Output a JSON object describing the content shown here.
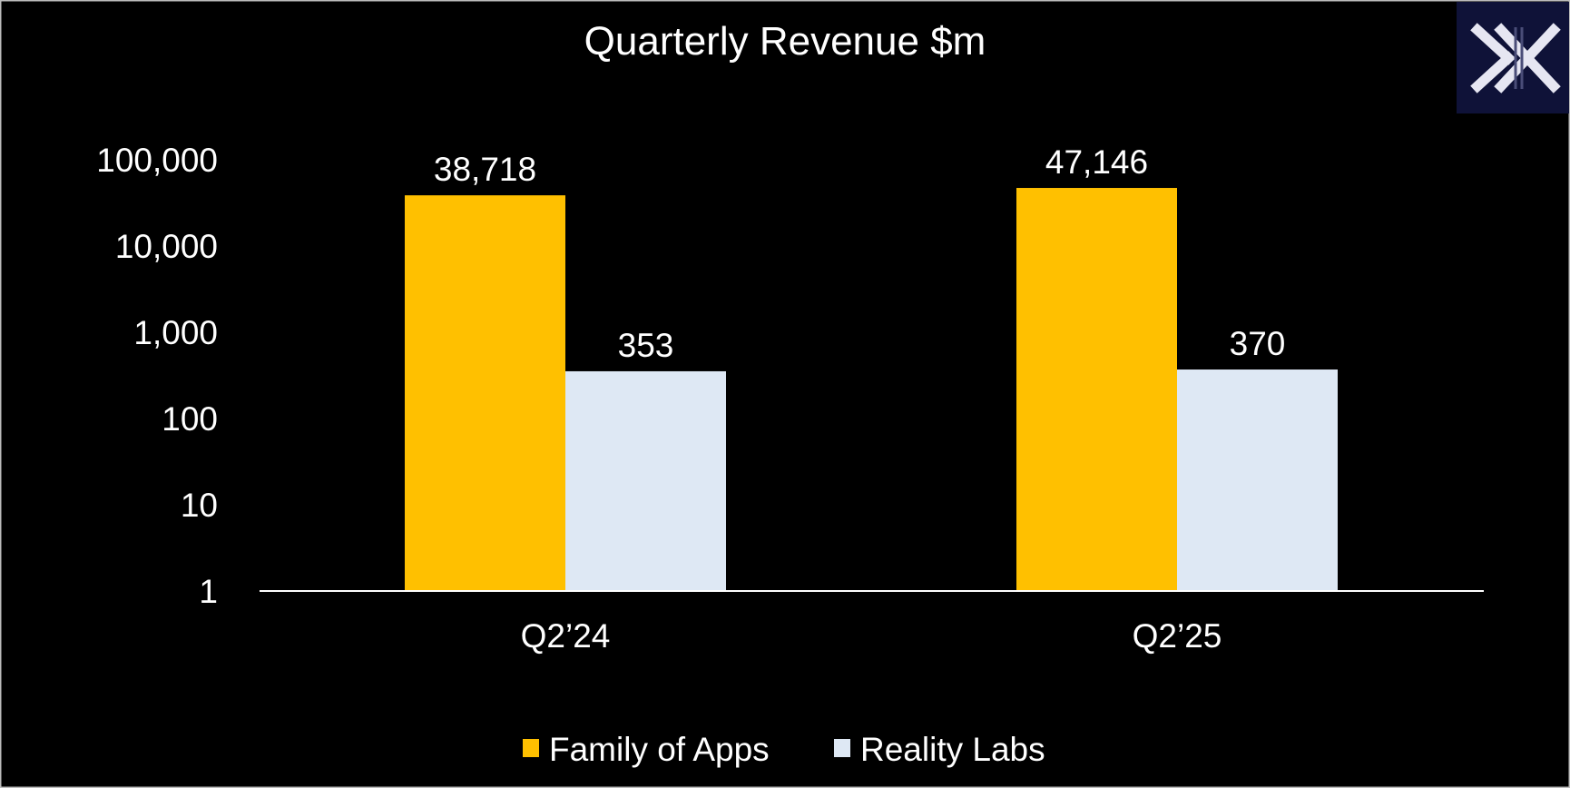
{
  "chart_data": {
    "type": "bar",
    "title": "Quarterly Revenue $m",
    "xlabel": "",
    "ylabel": "",
    "y_scale": "log",
    "ylim": [
      1,
      100000
    ],
    "y_ticks": [
      "1",
      "10",
      "100",
      "1,000",
      "10,000",
      "100,000"
    ],
    "categories": [
      "Q2’24",
      "Q2’25"
    ],
    "series": [
      {
        "name": "Family of Apps",
        "color": "#FFC000",
        "values": [
          38718,
          47146
        ],
        "labels": [
          "38,718",
          "47,146"
        ]
      },
      {
        "name": "Reality Labs",
        "color": "#DEE8F4",
        "values": [
          353,
          370
        ],
        "labels": [
          "353",
          "370"
        ]
      }
    ],
    "grid": false,
    "legend_position": "bottom",
    "background": "#000000"
  },
  "logo": {
    "icon": "x-logo-icon",
    "background": "#0f1238",
    "foreground": "#e6e6f2"
  }
}
